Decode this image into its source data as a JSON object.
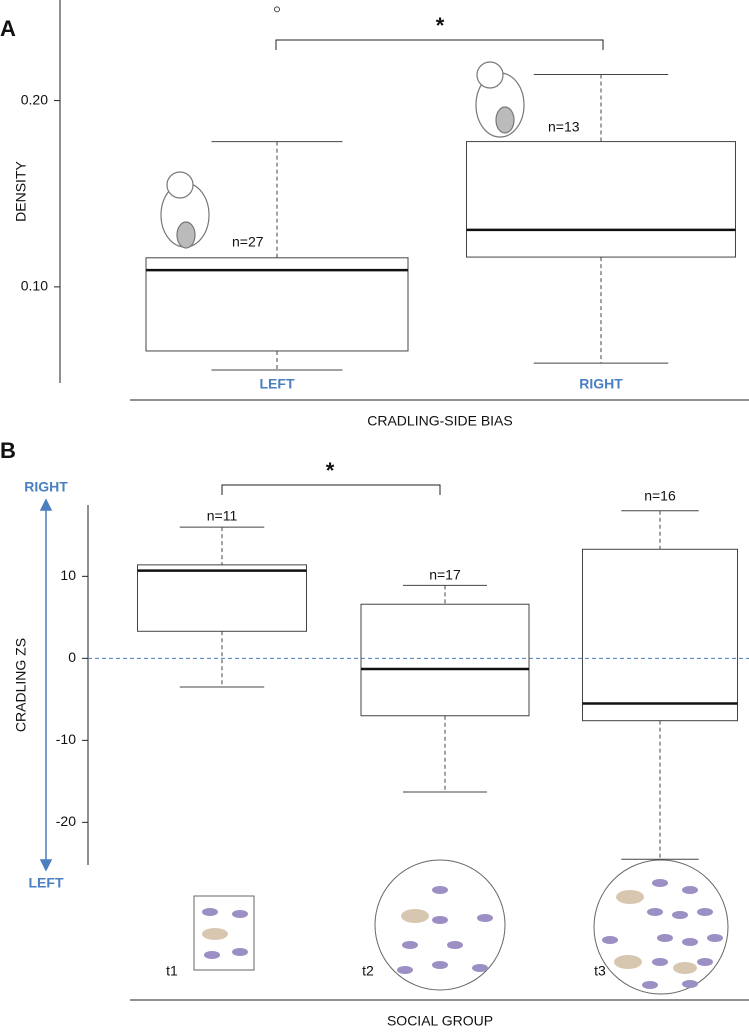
{
  "chart_data": [
    {
      "type": "box",
      "panel": "A",
      "ylabel": "DENSITY",
      "xlabel": "CRADLING-SIDE BIAS",
      "categories": [
        "LEFT",
        "RIGHT"
      ],
      "boxes": [
        {
          "min": 0.0554,
          "q1": 0.0656,
          "median": 0.109,
          "q3": 0.1156,
          "max": 0.178
        },
        {
          "min": 0.0591,
          "q1": 0.116,
          "median": 0.1306,
          "q3": 0.178,
          "max": 0.214
        }
      ],
      "outliers": [
        [
          0.249
        ],
        []
      ],
      "annotations": [
        "n=27",
        "n=13"
      ],
      "significance": "*",
      "ylim": [
        0.0484,
        0.254
      ],
      "yticks": [
        {
          "value": 0.2,
          "label": "0.20"
        },
        {
          "value": 0.1,
          "label": "0.10"
        }
      ]
    },
    {
      "type": "box",
      "panel": "B",
      "ylabel": "CRADLING ZS",
      "xlabel": "SOCIAL GROUP",
      "arrow_top": "RIGHT",
      "arrow_bottom": "LEFT",
      "categories": [
        "t1",
        "t2",
        "t3"
      ],
      "boxes": [
        {
          "min": -3.5,
          "q1": 3.3,
          "median": 10.7,
          "q3": 11.4,
          "max": 16
        },
        {
          "min": -16.3,
          "q1": -7,
          "median": -1.3,
          "q3": 6.6,
          "max": 8.9
        },
        {
          "min": -24.5,
          "q1": -7.6,
          "median": -5.5,
          "q3": 13.3,
          "max": 18
        }
      ],
      "outliers": [
        [],
        [],
        []
      ],
      "annotations": [
        "n=11",
        "n=17",
        "n=16"
      ],
      "significance": "*",
      "hline": 0,
      "hline_color": "#4a7fc1",
      "ylim": [
        -25.2,
        18.7
      ],
      "yticks": [
        10,
        0,
        -10,
        -20
      ]
    }
  ]
}
